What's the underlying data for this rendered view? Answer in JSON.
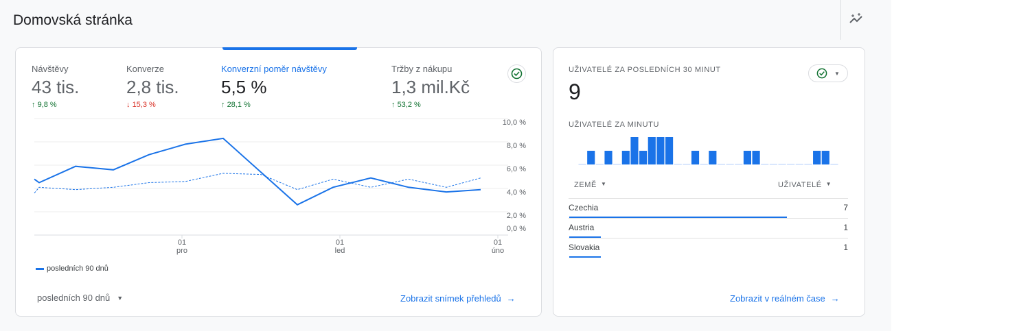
{
  "page": {
    "title": "Domovská stránka",
    "insights_icon": "insights-sparkle-icon"
  },
  "overview": {
    "metrics": [
      {
        "label": "Návštěvy",
        "value": "43 tis.",
        "change": "9,8 %",
        "direction": "up"
      },
      {
        "label": "Konverze",
        "value": "2,8 tis.",
        "change": "15,3 %",
        "direction": "down"
      },
      {
        "label": "Konverzní poměr návštěvy",
        "value": "5,5 %",
        "change": "28,1 %",
        "direction": "up",
        "selected": true
      },
      {
        "label": "Tržby z nákupu",
        "value": "1,3 mil.Kč",
        "change": "53,2 %",
        "direction": "up"
      }
    ],
    "legend": "posledních 90 dnů",
    "date_range": "posledních 90 dnů",
    "link": "Zobrazit snímek přehledů",
    "colors": {
      "accent": "#1a73e8",
      "up": "#137333",
      "down": "#d93025"
    }
  },
  "chart_data": {
    "type": "line",
    "y_ticks": [
      "10,0 %",
      "8,0 %",
      "6,0 %",
      "4,0 %",
      "2,0 %",
      "0,0 %"
    ],
    "x_ticks": [
      {
        "day": "01",
        "month": "pro"
      },
      {
        "day": "01",
        "month": "led"
      },
      {
        "day": "01",
        "month": "úno"
      }
    ],
    "ylim": [
      0,
      10
    ],
    "grid": true,
    "legend_placement": "bottom-left",
    "series": [
      {
        "name": "posledních 90 dnů",
        "style": "solid",
        "values": [
          4.8,
          4.5,
          5.9,
          5.6,
          6.9,
          7.8,
          8.3,
          2.6,
          4.1,
          4.9,
          4.1,
          3.7,
          3.9
        ]
      },
      {
        "style": "dashed",
        "values": [
          3.6,
          4.1,
          3.9,
          4.1,
          4.5,
          4.6,
          5.3,
          5.2,
          3.9,
          4.8,
          4.1,
          4.8,
          4.1,
          4.9
        ]
      }
    ]
  },
  "realtime": {
    "title": "UŽIVATELÉ ZA POSLEDNÍCH 30 MINUT",
    "value": "9",
    "per_minute_title": "UŽIVATELÉ ZA MINUTU",
    "per_minute": [
      0,
      1,
      0,
      1,
      0,
      1,
      2,
      1,
      2,
      2,
      2,
      0,
      0,
      1,
      0,
      1,
      0,
      0,
      0,
      1,
      1,
      0,
      0,
      0,
      0,
      0,
      0,
      1,
      1,
      0
    ],
    "col_country": "ZEMĚ",
    "col_users": "UŽIVATELÉ",
    "rows": [
      {
        "country": "Czechia",
        "users": "7"
      },
      {
        "country": "Austria",
        "users": "1"
      },
      {
        "country": "Slovakia",
        "users": "1"
      }
    ],
    "link": "Zobrazit v reálném čase"
  }
}
